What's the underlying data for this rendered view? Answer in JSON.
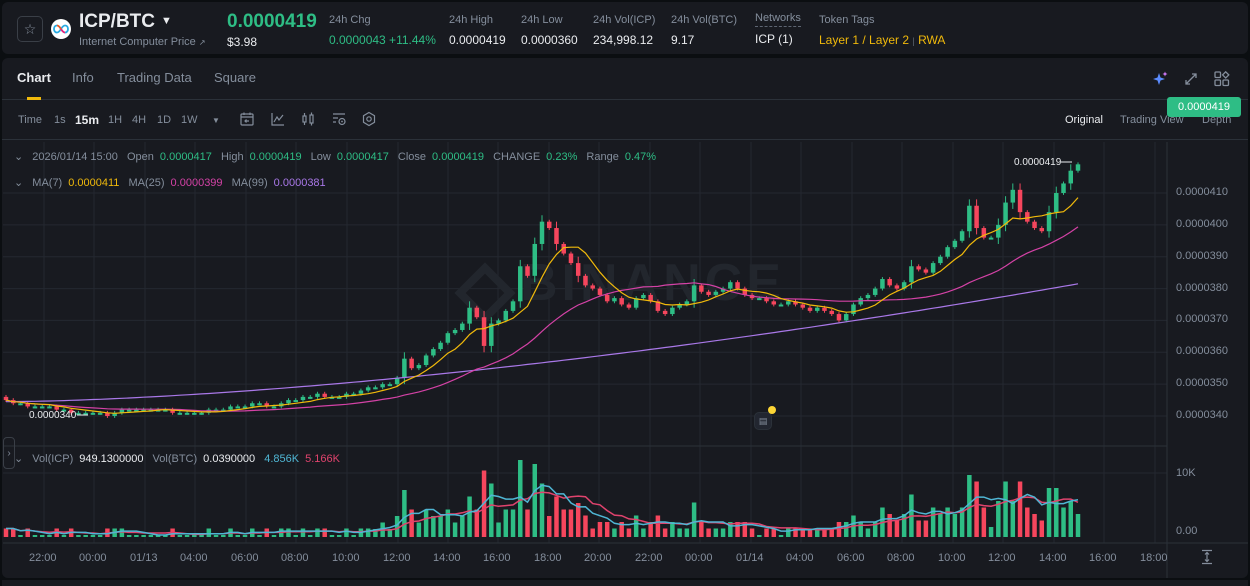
{
  "header": {
    "pair": "ICP/BTC",
    "subtitle": "Internet Computer Price",
    "subtitle_icon": "external-link-icon",
    "last_price": "0.0000419",
    "last_price_usd": "$3.98",
    "stats": [
      {
        "label": "24h Chg",
        "value": "0.0000043 +11.44%",
        "color": "green"
      },
      {
        "label": "24h High",
        "value": "0.0000419"
      },
      {
        "label": "24h Low",
        "value": "0.0000360"
      },
      {
        "label": "24h Vol(ICP)",
        "value": "234,998.12"
      },
      {
        "label": "24h Vol(BTC)",
        "value": "9.17"
      },
      {
        "label": "Networks",
        "value": "ICP (1)"
      },
      {
        "label": "Token Tags",
        "value": "Layer 1 / Layer 2",
        "value2": "RWA",
        "color": "gold"
      }
    ]
  },
  "tabs": [
    "Chart",
    "Info",
    "Trading Data",
    "Square"
  ],
  "active_tab": "Chart",
  "top_icons": [
    "ai-sparkle-icon",
    "expand-icon",
    "layout-grid-icon"
  ],
  "toolbar": {
    "time_label": "Time",
    "intervals": [
      "1s",
      "15m",
      "1H",
      "4H",
      "1D",
      "1W"
    ],
    "active_interval": "15m",
    "more_icon": "chevron-down-icon",
    "tools": [
      "calendar-icon",
      "indicator-icon",
      "candle-type-icon",
      "chart-settings-icon",
      "hexagon-settings-icon"
    ],
    "views": [
      "Original",
      "Trading View",
      "Depth"
    ],
    "active_view": "Original"
  },
  "ohlc_legend": {
    "datetime": "2026/01/14 15:00",
    "open_label": "Open",
    "open": "0.0000417",
    "high_label": "High",
    "high": "0.0000419",
    "low_label": "Low",
    "low": "0.0000417",
    "close_label": "Close",
    "close": "0.0000419",
    "change_label": "CHANGE",
    "change": "0.23%",
    "range_label": "Range",
    "range": "0.47%"
  },
  "ma_legend": {
    "ma7_label": "MA(7)",
    "ma7": "0.0000411",
    "ma25_label": "MA(25)",
    "ma25": "0.0000399",
    "ma99_label": "MA(99)",
    "ma99": "0.0000381"
  },
  "vol_legend": {
    "vol_icp_label": "Vol(ICP)",
    "vol_icp": "949.1300000",
    "vol_btc_label": "Vol(BTC)",
    "vol_btc": "0.0390000",
    "ma5": "4.856K",
    "ma10": "5.166K"
  },
  "colors": {
    "up": "#2ebd85",
    "down": "#f6465d",
    "ma7": "#f0b90b",
    "ma25": "#d442a6",
    "ma99": "#a978e8",
    "vol_ma5": "#4fb6d4",
    "vol_ma10": "#e0436d",
    "grid": "#242830",
    "bg": "#181a20"
  },
  "chart_data": {
    "type": "candlestick",
    "title": "ICP/BTC 15m",
    "watermark": "BINANCE",
    "y_axis": {
      "ticks": [
        "0.0000410",
        "0.0000400",
        "0.0000390",
        "0.0000380",
        "0.0000370",
        "0.0000360",
        "0.0000350",
        "0.0000340"
      ],
      "range": [
        3.33e-05,
        4.24e-05
      ],
      "current_price_tag": "0.0000419"
    },
    "x_axis": {
      "ticks": [
        "22:00",
        "00:00",
        "01/13",
        "04:00",
        "06:00",
        "08:00",
        "10:00",
        "12:00",
        "14:00",
        "16:00",
        "18:00",
        "20:00",
        "22:00",
        "00:00",
        "01/14",
        "04:00",
        "06:00",
        "08:00",
        "10:00",
        "12:00",
        "14:00",
        "16:00",
        "18:00"
      ]
    },
    "annotations": {
      "max_label": "0.0000419",
      "min_label": "0.0000340"
    },
    "volume_axis": {
      "ticks": [
        "10K",
        "0.00"
      ]
    },
    "candles_close": [
      345,
      344,
      344,
      343,
      343,
      343,
      343,
      342,
      342,
      341,
      341,
      341,
      341,
      341,
      340,
      341,
      342,
      342,
      342,
      342,
      342,
      342,
      342,
      341,
      341,
      341,
      341,
      341,
      342,
      342,
      342,
      343,
      343,
      343,
      344,
      344,
      343,
      343,
      344,
      345,
      345,
      346,
      346,
      347,
      346,
      346,
      346,
      347,
      347,
      348,
      349,
      349,
      350,
      350,
      352,
      358,
      355,
      356,
      359,
      361,
      363,
      366,
      367,
      369,
      374,
      371,
      362,
      369,
      370,
      373,
      376,
      387,
      384,
      394,
      401,
      399,
      394,
      391,
      388,
      384,
      381,
      380,
      378,
      376,
      377,
      375,
      374,
      377,
      378,
      376,
      373,
      372,
      374,
      375,
      376,
      381,
      379,
      378,
      379,
      380,
      382,
      380,
      378,
      377,
      377,
      376,
      375,
      375,
      376,
      375,
      374,
      373,
      374,
      373,
      372,
      370,
      372,
      375,
      377,
      378,
      380,
      383,
      381,
      380,
      382,
      387,
      386,
      385,
      388,
      390,
      393,
      395,
      398,
      406,
      399,
      396,
      396,
      400,
      407,
      411,
      404,
      401,
      399,
      398,
      404,
      410,
      413,
      417,
      419
    ]
  }
}
